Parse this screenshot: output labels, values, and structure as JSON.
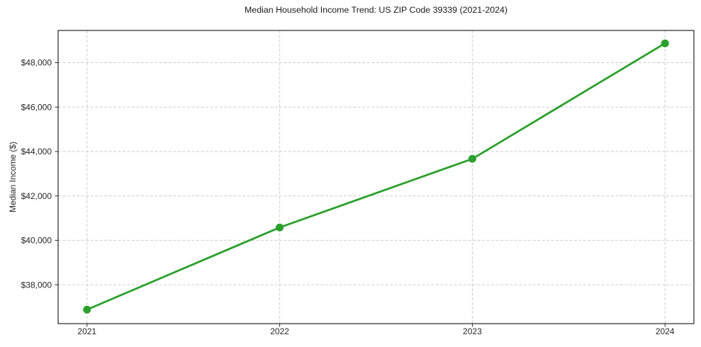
{
  "figure": {
    "background_color": "#ffffff"
  },
  "chart_data": {
    "type": "line",
    "title": "Median Household Income Trend: US ZIP Code 39339 (2021-2024)",
    "xlabel": "",
    "ylabel": "Median Income ($)",
    "x": [
      2021,
      2022,
      2023,
      2024
    ],
    "x_tick_labels": [
      "2021",
      "2022",
      "2023",
      "2024"
    ],
    "values": [
      36880,
      40580,
      43670,
      48870
    ],
    "y_ticks": [
      38000,
      40000,
      42000,
      44000,
      46000,
      48000
    ],
    "y_tick_labels": [
      "$38,000",
      "$40,000",
      "$42,000",
      "$44,000",
      "$46,000",
      "$48,000"
    ],
    "xlim": [
      2020.85,
      2024.15
    ],
    "ylim": [
      36250,
      49450
    ],
    "grid": true,
    "grid_style": "dashed",
    "legend_position": "none",
    "line_color": "#2ca02c",
    "marker": "circle",
    "grid_color": "#cccccc",
    "axis_color": "#262626",
    "tick_label_color": "#262626"
  }
}
